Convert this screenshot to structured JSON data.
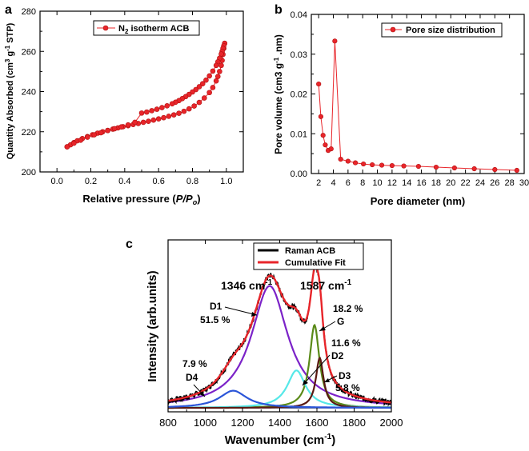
{
  "chart_data": [
    {
      "panel": "a",
      "type": "line",
      "title": "",
      "xlabel": "Relative pressure (P/P",
      "xlabel_italic": "P/P",
      "xlabel_sub": "o",
      "xlabel_end": ")",
      "ylabel": "Quantity Absorbed (cm",
      "ylabel_sup1": "3",
      "ylabel_mid": " g",
      "ylabel_sup2": "-1",
      "ylabel_end": " STP)",
      "xlim": [
        -0.1,
        1.1
      ],
      "ylim": [
        200,
        280
      ],
      "xticks": [
        "0.0",
        "0.2",
        "0.4",
        "0.6",
        "0.8",
        "1.0"
      ],
      "yticks": [
        "200",
        "220",
        "240",
        "260",
        "280"
      ],
      "legend": {
        "pre": "N",
        "sub": "2",
        "post": " isotherm ACB"
      },
      "color": "#e8252a",
      "series": [
        {
          "name": "adsorption",
          "x": [
            0.06,
            0.08,
            0.1,
            0.12,
            0.15,
            0.18,
            0.21,
            0.24,
            0.27,
            0.3,
            0.33,
            0.36,
            0.39,
            0.42,
            0.45,
            0.48,
            0.51,
            0.54,
            0.57,
            0.6,
            0.63,
            0.66,
            0.69,
            0.72,
            0.75,
            0.78,
            0.81,
            0.84,
            0.87,
            0.9,
            0.92,
            0.94,
            0.95,
            0.96,
            0.97,
            0.975,
            0.98,
            0.985,
            0.99
          ],
          "y": [
            212.5,
            213.5,
            214.6,
            215.5,
            216.6,
            217.6,
            218.5,
            219.3,
            220.0,
            220.7,
            221.3,
            221.9,
            222.5,
            223.0,
            223.6,
            224.1,
            224.7,
            225.2,
            225.8,
            226.4,
            227.0,
            227.7,
            228.4,
            229.2,
            230.2,
            231.4,
            232.8,
            234.6,
            236.8,
            239.5,
            242.0,
            245.3,
            247.5,
            250.0,
            253.0,
            255.5,
            258.5,
            261.5,
            264.0
          ]
        },
        {
          "name": "desorption",
          "x": [
            0.99,
            0.985,
            0.98,
            0.975,
            0.97,
            0.96,
            0.95,
            0.94,
            0.92,
            0.9,
            0.88,
            0.86,
            0.84,
            0.82,
            0.8,
            0.78,
            0.76,
            0.74,
            0.72,
            0.7,
            0.68,
            0.65,
            0.62,
            0.59,
            0.56,
            0.53,
            0.5,
            0.46,
            0.42,
            0.38,
            0.34,
            0.3,
            0.26,
            0.22,
            0.18,
            0.14,
            0.1,
            0.06
          ],
          "y": [
            264.0,
            262.8,
            261.5,
            260.0,
            258.7,
            256.6,
            254.8,
            253.0,
            250.2,
            247.8,
            245.7,
            243.9,
            242.4,
            241.0,
            239.8,
            238.6,
            237.5,
            236.5,
            235.5,
            234.7,
            233.9,
            232.9,
            232.0,
            231.2,
            230.5,
            229.8,
            229.3,
            224.7,
            223.4,
            222.4,
            221.5,
            220.6,
            219.5,
            218.5,
            217.3,
            215.8,
            214.3,
            212.5
          ]
        }
      ]
    },
    {
      "panel": "b",
      "type": "line",
      "title": "",
      "xlabel": "Pore diameter (nm)",
      "ylabel": "Pore volume (cm3 g",
      "ylabel_sup": "-1",
      "ylabel_end": " .nm)",
      "xlim": [
        1,
        30
      ],
      "ylim": [
        0,
        0.04
      ],
      "xticks": [
        "2",
        "4",
        "6",
        "8",
        "10",
        "12",
        "14",
        "16",
        "18",
        "20",
        "22",
        "24",
        "26",
        "28",
        "30"
      ],
      "yticks": [
        "0.00",
        "0.01",
        "0.02",
        "0.03",
        "0.04"
      ],
      "legend": "Pore size distribution",
      "color": "#e8252a",
      "series": [
        {
          "name": "Pore size distribution",
          "x": [
            2.0,
            2.3,
            2.6,
            2.9,
            3.3,
            3.7,
            4.2,
            5.0,
            6.0,
            7.0,
            8.1,
            9.3,
            10.6,
            12.0,
            13.6,
            15.6,
            18.0,
            20.5,
            23.2,
            26.0,
            29.0
          ],
          "y": [
            0.0225,
            0.0143,
            0.0096,
            0.0072,
            0.0058,
            0.0062,
            0.0333,
            0.0036,
            0.0031,
            0.0027,
            0.0024,
            0.0022,
            0.0021,
            0.002,
            0.0019,
            0.0018,
            0.0016,
            0.0014,
            0.0012,
            0.001,
            0.0008
          ]
        }
      ]
    },
    {
      "panel": "c",
      "type": "line",
      "title": "",
      "xlabel": "Wavenumber (cm",
      "xlabel_sup": "-1",
      "xlabel_end": ")",
      "ylabel": "Intensity (arb.units)",
      "xlim": [
        800,
        2000
      ],
      "ylim": [
        0,
        1.1
      ],
      "xticks": [
        "800",
        "1000",
        "1200",
        "1400",
        "1600",
        "1800",
        "2000"
      ],
      "legend": [
        "Raman ACB",
        "Cumulative Fit"
      ],
      "peaks": [
        {
          "name": "D1",
          "center": 1346,
          "hwhm": 120,
          "height": 0.78,
          "color": "#7b22c8",
          "percent": "51.5 %"
        },
        {
          "name": "G",
          "center": 1587,
          "hwhm": 32,
          "height": 0.53,
          "color": "#5a8a18",
          "percent": "18.2 %"
        },
        {
          "name": "D2",
          "center": 1490,
          "hwhm": 60,
          "height": 0.24,
          "color": "#56e8e8",
          "percent": "11.6 %"
        },
        {
          "name": "D3",
          "center": 1615,
          "hwhm": 25,
          "height": 0.32,
          "color": "#5a1a12",
          "percent": "5.8 %"
        },
        {
          "name": "D4",
          "center": 1150,
          "hwhm": 90,
          "height": 0.11,
          "color": "#2b55d8",
          "percent": "7.9 %"
        }
      ],
      "peak_labels": [
        {
          "value": "1346 cm",
          "sup": "-1"
        },
        {
          "value": "1587 cm",
          "sup": "-1"
        }
      ],
      "baseline": 0.025
    }
  ],
  "panel_labels": [
    "a",
    "b",
    "c"
  ]
}
